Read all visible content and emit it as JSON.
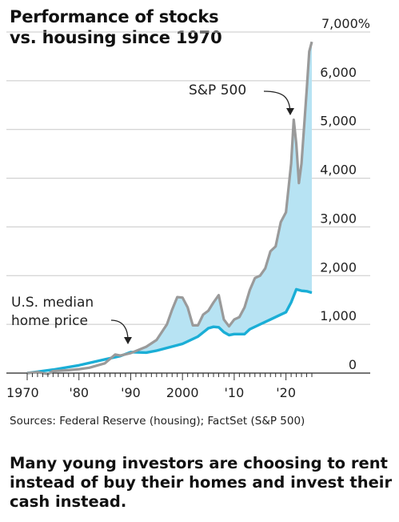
{
  "header": {
    "title_line1": "Performance of stocks",
    "title_line2": "vs. housing since 1970"
  },
  "chart_data": {
    "type": "line",
    "title": "Performance of stocks vs. housing since 1970",
    "xlabel": "",
    "ylabel": "",
    "xlim": [
      1970,
      2025
    ],
    "ylim": [
      0,
      7000
    ],
    "y_ticks": [
      0,
      1000,
      2000,
      3000,
      4000,
      5000,
      6000,
      7000
    ],
    "y_tick_labels": [
      "0",
      "1,000",
      "2,000",
      "3,000",
      "4,000",
      "5,000",
      "6,000",
      "7,000%"
    ],
    "x_ticks": [
      1970,
      1980,
      1990,
      2000,
      2010,
      2020
    ],
    "x_tick_labels": [
      "1970",
      "'80",
      "'90",
      "2000",
      "'10",
      "'20"
    ],
    "fill_between_series": "light blue",
    "grid": true,
    "series": [
      {
        "name": "S&P 500",
        "color": "#9a9a9a",
        "x": [
          1970,
          1972,
          1974,
          1975,
          1978,
          1980,
          1982,
          1985,
          1987,
          1988,
          1990,
          1993,
          1995,
          1997,
          1998,
          1999,
          2000,
          2001,
          2002,
          2003,
          2004,
          2005,
          2006,
          2007,
          2008,
          2009,
          2010,
          2011,
          2012,
          2013,
          2014,
          2015,
          2016,
          2017,
          2018,
          2019,
          2020,
          2021,
          2021.5,
          2022,
          2022.5,
          2023,
          2024,
          2024.5,
          2025
        ],
        "y": [
          0,
          20,
          -20,
          40,
          60,
          80,
          110,
          200,
          380,
          360,
          410,
          540,
          680,
          1000,
          1300,
          1560,
          1550,
          1350,
          980,
          980,
          1200,
          1280,
          1450,
          1600,
          1100,
          960,
          1100,
          1150,
          1350,
          1700,
          1950,
          2000,
          2150,
          2500,
          2600,
          3100,
          3300,
          4300,
          5200,
          4700,
          3900,
          4300,
          5800,
          6600,
          6800
        ]
      },
      {
        "name": "U.S. median home price",
        "color": "#1aaed6",
        "x": [
          1970,
          1975,
          1980,
          1985,
          1988,
          1990,
          1993,
          1995,
          2000,
          2003,
          2005,
          2006,
          2007,
          2008,
          2009,
          2010,
          2012,
          2013,
          2015,
          2017,
          2019,
          2020,
          2021,
          2022,
          2023,
          2024,
          2025
        ],
        "y": [
          0,
          70,
          160,
          280,
          350,
          430,
          420,
          460,
          600,
          750,
          920,
          950,
          940,
          840,
          780,
          800,
          800,
          900,
          1000,
          1100,
          1200,
          1250,
          1450,
          1720,
          1690,
          1680,
          1650
        ]
      }
    ],
    "annotations": [
      {
        "text": "S&P 500",
        "points_to": "S&P 500 peak around 2022"
      },
      {
        "text": "U.S. median home price",
        "points_to": "home price line around 1990"
      }
    ]
  },
  "annotations": {
    "sp500_label": "S&P 500",
    "home_label_line1": "U.S. median",
    "home_label_line2": "home price"
  },
  "footer": {
    "source": "Sources: Federal Reserve (housing); FactSet (S&P 500)",
    "caption": "Many young investors are choosing to rent instead of buy their homes and invest their cash instead."
  },
  "colors": {
    "sp500_line": "#9a9a9a",
    "home_line": "#1aaed6",
    "fill": "#b7e3f3",
    "grid": "#c8c8c8"
  }
}
